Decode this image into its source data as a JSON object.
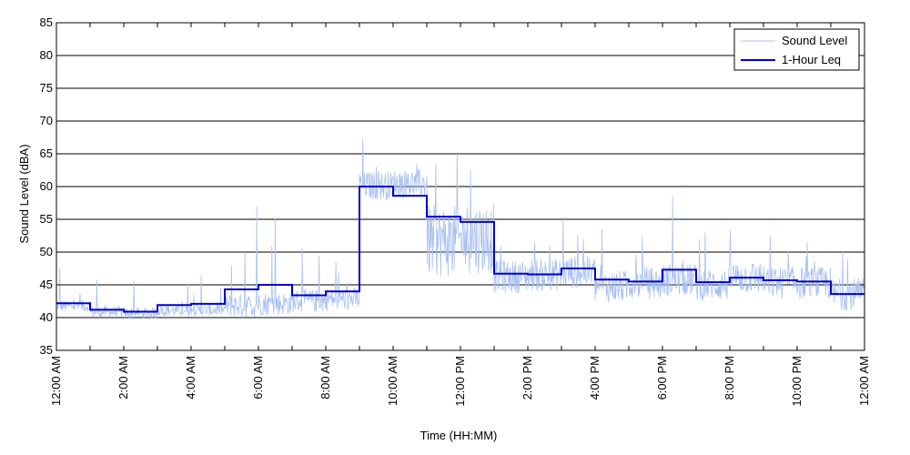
{
  "chart_data": {
    "type": "line",
    "title": "",
    "xlabel": "Time (HH:MM)",
    "ylabel": "Sound Level (dBA)",
    "ylim": [
      35,
      85
    ],
    "yticks": [
      35,
      40,
      45,
      50,
      55,
      60,
      65,
      70,
      75,
      80,
      85
    ],
    "xlim": [
      0,
      24
    ],
    "xticks": [
      {
        "hour": 0,
        "label": "12:00 AM"
      },
      {
        "hour": 2,
        "label": "2:00 AM"
      },
      {
        "hour": 4,
        "label": "4:00 AM"
      },
      {
        "hour": 6,
        "label": "6:00 AM"
      },
      {
        "hour": 8,
        "label": "8:00 AM"
      },
      {
        "hour": 10,
        "label": "10:00 AM"
      },
      {
        "hour": 12,
        "label": "12:00 PM"
      },
      {
        "hour": 14,
        "label": "2:00 PM"
      },
      {
        "hour": 16,
        "label": "4:00 PM"
      },
      {
        "hour": 18,
        "label": "6:00 PM"
      },
      {
        "hour": 20,
        "label": "8:00 PM"
      },
      {
        "hour": 22,
        "label": "10:00 PM"
      },
      {
        "hour": 24,
        "label": "12:00 AM"
      }
    ],
    "grid": "horizontal",
    "legend_position": "top-right",
    "series": [
      {
        "name": "Sound Level",
        "color": "#a8c0f0",
        "style": "thin-line",
        "hourly_base": [
          41.5,
          40.6,
          40.4,
          40.8,
          40.9,
          41.3,
          41.6,
          42.0,
          42.3,
          59.5,
          59.8,
          50.0,
          50.5,
          45.5,
          45.8,
          46.2,
          44.0,
          44.5,
          45.0,
          44.3,
          45.4,
          44.6,
          44.5,
          42.8
        ],
        "peaks": [
          {
            "hour": 0.1,
            "value": 47.5
          },
          {
            "hour": 1.2,
            "value": 45.8
          },
          {
            "hour": 2.3,
            "value": 45.5
          },
          {
            "hour": 3.9,
            "value": 45.2
          },
          {
            "hour": 4.3,
            "value": 46.5
          },
          {
            "hour": 5.2,
            "value": 48.0
          },
          {
            "hour": 5.6,
            "value": 50.0
          },
          {
            "hour": 5.95,
            "value": 57.0
          },
          {
            "hour": 6.4,
            "value": 51.0
          },
          {
            "hour": 6.5,
            "value": 55.2
          },
          {
            "hour": 7.3,
            "value": 50.5
          },
          {
            "hour": 7.8,
            "value": 49.5
          },
          {
            "hour": 8.3,
            "value": 48.5
          },
          {
            "hour": 9.1,
            "value": 67.3
          },
          {
            "hour": 9.5,
            "value": 63.0
          },
          {
            "hour": 10.2,
            "value": 62.0
          },
          {
            "hour": 10.7,
            "value": 63.5
          },
          {
            "hour": 11.0,
            "value": 61.5
          },
          {
            "hour": 11.9,
            "value": 65.0
          },
          {
            "hour": 12.3,
            "value": 62.5
          },
          {
            "hour": 13.2,
            "value": 51.0
          },
          {
            "hour": 14.2,
            "value": 51.5
          },
          {
            "hour": 15.05,
            "value": 55.0
          },
          {
            "hour": 15.65,
            "value": 52.0
          },
          {
            "hour": 16.2,
            "value": 53.5
          },
          {
            "hour": 17.4,
            "value": 52.5
          },
          {
            "hour": 18.3,
            "value": 58.5
          },
          {
            "hour": 19.1,
            "value": 52.0
          },
          {
            "hour": 20.0,
            "value": 50.0
          },
          {
            "hour": 21.2,
            "value": 52.5
          },
          {
            "hour": 22.3,
            "value": 51.5
          },
          {
            "hour": 23.5,
            "value": 49.0
          }
        ]
      },
      {
        "name": "1-Hour Leq",
        "color": "#0000cc",
        "style": "step",
        "values": [
          42.2,
          41.2,
          40.9,
          41.9,
          42.1,
          44.3,
          45.0,
          43.4,
          44.0,
          60.0,
          58.6,
          55.4,
          54.6,
          46.7,
          46.6,
          47.5,
          45.8,
          45.5,
          47.3,
          45.4,
          46.1,
          45.7,
          45.5,
          43.6
        ]
      }
    ]
  }
}
